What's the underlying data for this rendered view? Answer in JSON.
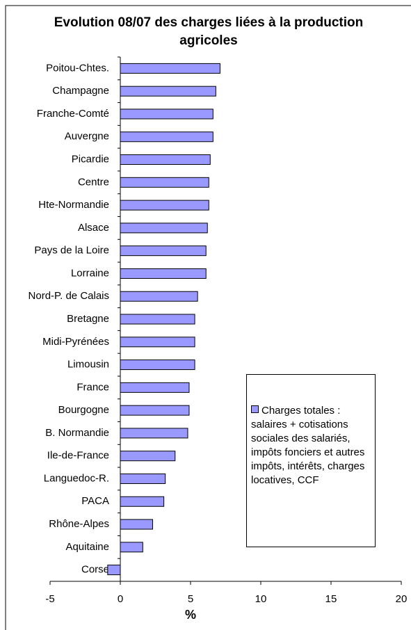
{
  "chart_data": {
    "type": "bar",
    "orientation": "horizontal",
    "title": "Evolution 08/07 des charges liées à la production agricoles",
    "xlabel": "%",
    "categories": [
      "Poitou-Chtes.",
      "Champagne",
      "Franche-Comté",
      "Auvergne",
      "Picardie",
      "Centre",
      "Hte-Normandie",
      "Alsace",
      "Pays de la Loire",
      "Lorraine",
      "Nord-P. de Calais",
      "Bretagne",
      "Midi-Pyrénées",
      "Limousin",
      "France",
      "Bourgogne",
      "B. Normandie",
      "Ile-de-France",
      "Languedoc-R.",
      "PACA",
      "Rhône-Alpes",
      "Aquitaine",
      "Corse"
    ],
    "series": [
      {
        "name": "Charges totales : salaires + cotisations sociales des salariés, impôts fonciers et autres impôts, intérêts, charges locatives, CCF",
        "color": "#9999ff",
        "values": [
          7.1,
          6.8,
          6.6,
          6.6,
          6.4,
          6.3,
          6.3,
          6.2,
          6.1,
          6.1,
          5.5,
          5.3,
          5.3,
          5.3,
          4.9,
          4.9,
          4.8,
          3.9,
          3.2,
          3.1,
          2.3,
          1.6,
          -0.9
        ]
      }
    ],
    "xlim": [
      -5,
      20
    ],
    "xticks": [
      -5,
      0,
      5,
      10,
      15,
      20
    ],
    "grid": false,
    "legend": "right"
  }
}
